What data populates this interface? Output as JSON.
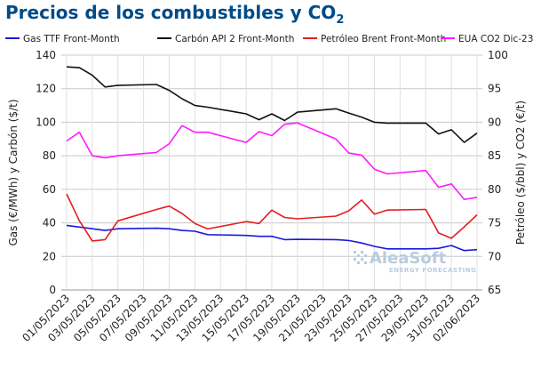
{
  "header": {
    "title_main": "Precios de los combustibles y CO",
    "title_sub": "2"
  },
  "logo": {
    "name": "AleaSoft",
    "tagline": "ENERGY FORECASTING"
  },
  "chart_data": {
    "type": "line",
    "title": "Precios de los combustibles y CO2",
    "x_labels": [
      "01/05/2023",
      "03/05/2023",
      "05/05/2023",
      "07/05/2023",
      "09/05/2023",
      "11/05/2023",
      "13/05/2023",
      "15/05/2023",
      "17/05/2023",
      "19/05/2023",
      "21/05/2023",
      "23/05/2023",
      "25/05/2023",
      "27/05/2023",
      "29/05/2023",
      "31/05/2023",
      "02/06/2023"
    ],
    "y_left": {
      "label": "Gas (€/MWh) y Carbón ($/t)",
      "min": 0,
      "max": 140,
      "ticks": [
        0,
        20,
        40,
        60,
        80,
        100,
        120,
        140
      ]
    },
    "y_right": {
      "label": "Petróleo ($/bbl) y CO2 (€/t)",
      "min": 65,
      "max": 100,
      "ticks": [
        65,
        70,
        75,
        80,
        85,
        90,
        95,
        100
      ]
    },
    "grid": true,
    "legend_position": "top",
    "series": [
      {
        "name": "Gas TTF Front-Month",
        "color": "#1a1adb",
        "axis": "left",
        "points": [
          [
            "01/05/2023",
            38.5
          ],
          [
            "02/05/2023",
            37.5
          ],
          [
            "03/05/2023",
            36.5
          ],
          [
            "04/05/2023",
            35.5
          ],
          [
            "05/05/2023",
            36.5
          ],
          [
            "08/05/2023",
            36.8
          ],
          [
            "09/05/2023",
            36.5
          ],
          [
            "10/05/2023",
            35.5
          ],
          [
            "11/05/2023",
            35.0
          ],
          [
            "12/05/2023",
            33.0
          ],
          [
            "15/05/2023",
            32.5
          ],
          [
            "16/05/2023",
            32.0
          ],
          [
            "17/05/2023",
            32.0
          ],
          [
            "18/05/2023",
            30.0
          ],
          [
            "19/05/2023",
            30.2
          ],
          [
            "22/05/2023",
            30.0
          ],
          [
            "23/05/2023",
            29.5
          ],
          [
            "24/05/2023",
            28.0
          ],
          [
            "25/05/2023",
            26.0
          ],
          [
            "26/05/2023",
            24.5
          ],
          [
            "29/05/2023",
            24.5
          ],
          [
            "30/05/2023",
            24.8
          ],
          [
            "31/05/2023",
            26.5
          ],
          [
            "01/06/2023",
            23.5
          ],
          [
            "02/06/2023",
            24.0
          ]
        ]
      },
      {
        "name": "Carbón API 2 Front-Month",
        "color": "#111111",
        "axis": "left",
        "points": [
          [
            "01/05/2023",
            133
          ],
          [
            "02/05/2023",
            132.5
          ],
          [
            "03/05/2023",
            128
          ],
          [
            "04/05/2023",
            121
          ],
          [
            "05/05/2023",
            122
          ],
          [
            "08/05/2023",
            122.5
          ],
          [
            "09/05/2023",
            119
          ],
          [
            "10/05/2023",
            114
          ],
          [
            "11/05/2023",
            110
          ],
          [
            "12/05/2023",
            109
          ],
          [
            "15/05/2023",
            105
          ],
          [
            "16/05/2023",
            101.5
          ],
          [
            "17/05/2023",
            105
          ],
          [
            "18/05/2023",
            101
          ],
          [
            "19/05/2023",
            106
          ],
          [
            "22/05/2023",
            108
          ],
          [
            "23/05/2023",
            105.5
          ],
          [
            "24/05/2023",
            103
          ],
          [
            "25/05/2023",
            100
          ],
          [
            "26/05/2023",
            99.5
          ],
          [
            "29/05/2023",
            99.5
          ],
          [
            "30/05/2023",
            93
          ],
          [
            "31/05/2023",
            95.5
          ],
          [
            "01/06/2023",
            88
          ],
          [
            "02/06/2023",
            93.5
          ]
        ]
      },
      {
        "name": "Petróleo Brent Front-Month",
        "color": "#e41e1e",
        "axis": "right",
        "points": [
          [
            "01/05/2023",
            79.3
          ],
          [
            "02/05/2023",
            75.3
          ],
          [
            "03/05/2023",
            72.3
          ],
          [
            "04/05/2023",
            72.5
          ],
          [
            "05/05/2023",
            75.3
          ],
          [
            "08/05/2023",
            77.0
          ],
          [
            "09/05/2023",
            77.5
          ],
          [
            "10/05/2023",
            76.4
          ],
          [
            "11/05/2023",
            74.9
          ],
          [
            "12/05/2023",
            74.1
          ],
          [
            "15/05/2023",
            75.2
          ],
          [
            "16/05/2023",
            74.9
          ],
          [
            "17/05/2023",
            76.9
          ],
          [
            "18/05/2023",
            75.8
          ],
          [
            "19/05/2023",
            75.6
          ],
          [
            "22/05/2023",
            76.0
          ],
          [
            "23/05/2023",
            76.8
          ],
          [
            "24/05/2023",
            78.4
          ],
          [
            "25/05/2023",
            76.3
          ],
          [
            "26/05/2023",
            76.9
          ],
          [
            "29/05/2023",
            77.0
          ],
          [
            "30/05/2023",
            73.5
          ],
          [
            "31/05/2023",
            72.7
          ],
          [
            "01/06/2023",
            74.4
          ],
          [
            "02/06/2023",
            76.2
          ]
        ]
      },
      {
        "name": "EUA CO2 Dic-23",
        "color": "#ff1aff",
        "axis": "right",
        "points": [
          [
            "01/05/2023",
            87.2
          ],
          [
            "02/05/2023",
            88.5
          ],
          [
            "03/05/2023",
            85.0
          ],
          [
            "04/05/2023",
            84.7
          ],
          [
            "05/05/2023",
            85.0
          ],
          [
            "08/05/2023",
            85.5
          ],
          [
            "09/05/2023",
            86.8
          ],
          [
            "10/05/2023",
            89.5
          ],
          [
            "11/05/2023",
            88.5
          ],
          [
            "12/05/2023",
            88.5
          ],
          [
            "15/05/2023",
            87.0
          ],
          [
            "16/05/2023",
            88.6
          ],
          [
            "17/05/2023",
            88.0
          ],
          [
            "18/05/2023",
            89.7
          ],
          [
            "19/05/2023",
            89.9
          ],
          [
            "22/05/2023",
            87.5
          ],
          [
            "23/05/2023",
            85.4
          ],
          [
            "24/05/2023",
            85.1
          ],
          [
            "25/05/2023",
            83.0
          ],
          [
            "26/05/2023",
            82.3
          ],
          [
            "29/05/2023",
            82.8
          ],
          [
            "30/05/2023",
            80.3
          ],
          [
            "31/05/2023",
            80.8
          ],
          [
            "01/06/2023",
            78.5
          ],
          [
            "02/06/2023",
            78.8
          ]
        ]
      }
    ]
  }
}
